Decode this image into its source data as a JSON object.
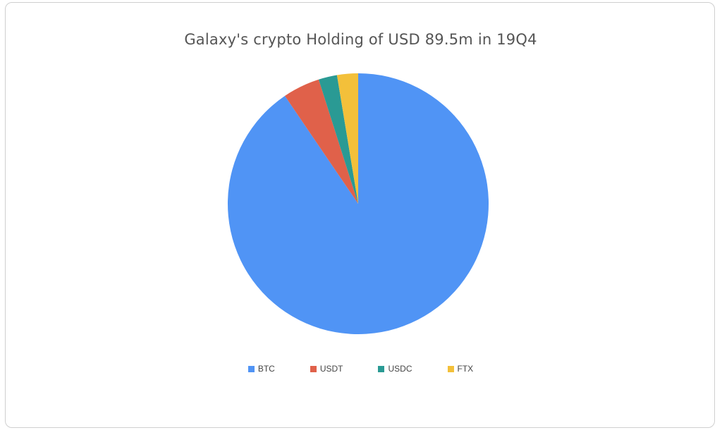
{
  "chart_data": {
    "type": "pie",
    "title": "Galaxy's crypto Holding of USD 89.5m in 19Q4",
    "categories": [
      "BTC",
      "USDT",
      "USDC",
      "FTX"
    ],
    "values": [
      90.5,
      4.6,
      2.3,
      2.6
    ],
    "colors": [
      "#5094f5",
      "#e0614a",
      "#2a9a94",
      "#f3c03a"
    ],
    "start_angle_deg": 0,
    "direction": "clockwise",
    "legend_position": "bottom"
  }
}
